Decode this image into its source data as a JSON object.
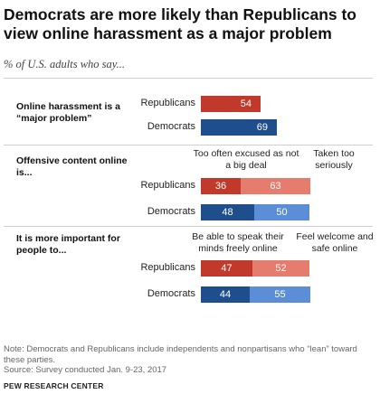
{
  "title": "Democrats are more likely than Republicans to view online harassment as a major problem",
  "subtitle": "% of U.S. adults who say...",
  "chart_data": {
    "type": "bar",
    "colors": {
      "rep_dark": "#c0392b",
      "rep_light": "#e57c6e",
      "dem_dark": "#1f4e8c",
      "dem_light": "#5b8ed6"
    },
    "sections": [
      {
        "question": "Online harassment is a “major problem”",
        "columns": [],
        "rows": [
          {
            "label": "Republicans",
            "values": [
              54
            ]
          },
          {
            "label": "Democrats",
            "values": [
              69
            ]
          }
        ]
      },
      {
        "question": "Offensive content online is...",
        "columns": [
          "Too often excused as not a big deal",
          "Taken too seriously"
        ],
        "rows": [
          {
            "label": "Republicans",
            "values": [
              36,
              63
            ]
          },
          {
            "label": "Democrats",
            "values": [
              48,
              50
            ]
          }
        ]
      },
      {
        "question": "It is more important for people to...",
        "columns": [
          "Be able to speak their minds freely online",
          "Feel welcome and safe online"
        ],
        "rows": [
          {
            "label": "Republicans",
            "values": [
              47,
              52
            ]
          },
          {
            "label": "Democrats",
            "values": [
              44,
              55
            ]
          }
        ]
      }
    ]
  },
  "note": "Note:  Democrats and Republicans include independents and nonpartisans who “lean” toward these parties.",
  "source": "Source: Survey conducted Jan. 9-23, 2017",
  "brand": "PEW RESEARCH CENTER"
}
